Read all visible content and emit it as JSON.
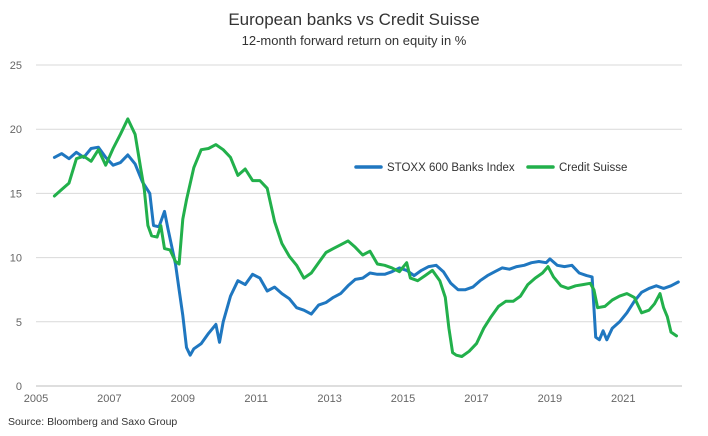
{
  "source": "Source: Bloomberg and Saxo Group",
  "chart_data": {
    "type": "line",
    "title": "European banks vs Credit Suisse",
    "subtitle": "12-month forward return on equity in %",
    "xlabel": "",
    "ylabel": "",
    "xlim": [
      2005,
      2022.6
    ],
    "ylim": [
      0,
      25
    ],
    "x_ticks": [
      "2005",
      "2007",
      "2009",
      "2011",
      "2013",
      "2015",
      "2017",
      "2019",
      "2021"
    ],
    "y_ticks": [
      "0",
      "5",
      "10",
      "15",
      "20",
      "25"
    ],
    "grid": true,
    "legend_position": "right-center",
    "colors": {
      "stoxx": "#1f77c0",
      "cs": "#22b04b"
    },
    "series": [
      {
        "name": "STOXX 600 Banks Index",
        "color": "#1f77c0",
        "points": [
          [
            2005.5,
            17.8
          ],
          [
            2005.7,
            18.1
          ],
          [
            2005.9,
            17.7
          ],
          [
            2006.1,
            18.2
          ],
          [
            2006.3,
            17.8
          ],
          [
            2006.5,
            18.5
          ],
          [
            2006.7,
            18.6
          ],
          [
            2006.9,
            17.8
          ],
          [
            2007.1,
            17.2
          ],
          [
            2007.3,
            17.4
          ],
          [
            2007.5,
            18.0
          ],
          [
            2007.7,
            17.3
          ],
          [
            2007.9,
            15.9
          ],
          [
            2008.1,
            15.0
          ],
          [
            2008.2,
            12.5
          ],
          [
            2008.35,
            12.4
          ],
          [
            2008.5,
            13.6
          ],
          [
            2008.6,
            12.2
          ],
          [
            2008.8,
            9.5
          ],
          [
            2008.9,
            7.5
          ],
          [
            2009.0,
            5.5
          ],
          [
            2009.1,
            3.0
          ],
          [
            2009.2,
            2.4
          ],
          [
            2009.3,
            2.9
          ],
          [
            2009.5,
            3.3
          ],
          [
            2009.7,
            4.1
          ],
          [
            2009.9,
            4.8
          ],
          [
            2010.0,
            3.4
          ],
          [
            2010.1,
            5.0
          ],
          [
            2010.3,
            7.0
          ],
          [
            2010.5,
            8.2
          ],
          [
            2010.7,
            7.9
          ],
          [
            2010.9,
            8.7
          ],
          [
            2011.1,
            8.4
          ],
          [
            2011.3,
            7.4
          ],
          [
            2011.5,
            7.7
          ],
          [
            2011.7,
            7.2
          ],
          [
            2011.9,
            6.8
          ],
          [
            2012.1,
            6.1
          ],
          [
            2012.3,
            5.9
          ],
          [
            2012.5,
            5.6
          ],
          [
            2012.7,
            6.3
          ],
          [
            2012.9,
            6.5
          ],
          [
            2013.1,
            6.9
          ],
          [
            2013.3,
            7.2
          ],
          [
            2013.5,
            7.8
          ],
          [
            2013.7,
            8.3
          ],
          [
            2013.9,
            8.4
          ],
          [
            2014.1,
            8.8
          ],
          [
            2014.3,
            8.7
          ],
          [
            2014.5,
            8.7
          ],
          [
            2014.7,
            8.9
          ],
          [
            2014.9,
            9.2
          ],
          [
            2015.1,
            9.0
          ],
          [
            2015.3,
            8.6
          ],
          [
            2015.5,
            9.0
          ],
          [
            2015.7,
            9.3
          ],
          [
            2015.9,
            9.4
          ],
          [
            2016.1,
            8.9
          ],
          [
            2016.3,
            8.0
          ],
          [
            2016.5,
            7.5
          ],
          [
            2016.7,
            7.5
          ],
          [
            2016.9,
            7.7
          ],
          [
            2017.1,
            8.2
          ],
          [
            2017.3,
            8.6
          ],
          [
            2017.5,
            8.9
          ],
          [
            2017.7,
            9.2
          ],
          [
            2017.9,
            9.1
          ],
          [
            2018.1,
            9.3
          ],
          [
            2018.3,
            9.4
          ],
          [
            2018.5,
            9.6
          ],
          [
            2018.7,
            9.7
          ],
          [
            2018.9,
            9.6
          ],
          [
            2019.0,
            9.9
          ],
          [
            2019.2,
            9.4
          ],
          [
            2019.4,
            9.3
          ],
          [
            2019.6,
            9.4
          ],
          [
            2019.8,
            8.8
          ],
          [
            2020.0,
            8.6
          ],
          [
            2020.15,
            8.5
          ],
          [
            2020.25,
            3.8
          ],
          [
            2020.35,
            3.6
          ],
          [
            2020.45,
            4.3
          ],
          [
            2020.55,
            3.6
          ],
          [
            2020.7,
            4.5
          ],
          [
            2020.9,
            5.0
          ],
          [
            2021.1,
            5.7
          ],
          [
            2021.3,
            6.6
          ],
          [
            2021.5,
            7.3
          ],
          [
            2021.7,
            7.6
          ],
          [
            2021.9,
            7.8
          ],
          [
            2022.1,
            7.6
          ],
          [
            2022.3,
            7.8
          ],
          [
            2022.5,
            8.1
          ]
        ]
      },
      {
        "name": "Credit Suisse",
        "color": "#22b04b",
        "points": [
          [
            2005.5,
            14.8
          ],
          [
            2005.7,
            15.3
          ],
          [
            2005.9,
            15.8
          ],
          [
            2006.1,
            17.7
          ],
          [
            2006.3,
            17.9
          ],
          [
            2006.5,
            17.5
          ],
          [
            2006.7,
            18.4
          ],
          [
            2006.9,
            17.2
          ],
          [
            2007.1,
            18.5
          ],
          [
            2007.3,
            19.6
          ],
          [
            2007.5,
            20.8
          ],
          [
            2007.7,
            19.6
          ],
          [
            2007.85,
            17.0
          ],
          [
            2007.95,
            15.3
          ],
          [
            2008.05,
            12.5
          ],
          [
            2008.15,
            11.7
          ],
          [
            2008.3,
            11.6
          ],
          [
            2008.4,
            12.5
          ],
          [
            2008.5,
            10.7
          ],
          [
            2008.65,
            10.6
          ],
          [
            2008.8,
            9.7
          ],
          [
            2008.9,
            9.5
          ],
          [
            2009.0,
            13.0
          ],
          [
            2009.1,
            14.5
          ],
          [
            2009.3,
            17.0
          ],
          [
            2009.5,
            18.4
          ],
          [
            2009.7,
            18.5
          ],
          [
            2009.9,
            18.8
          ],
          [
            2010.1,
            18.4
          ],
          [
            2010.3,
            17.8
          ],
          [
            2010.5,
            16.4
          ],
          [
            2010.7,
            16.9
          ],
          [
            2010.9,
            16.0
          ],
          [
            2011.1,
            16.0
          ],
          [
            2011.3,
            15.4
          ],
          [
            2011.5,
            12.8
          ],
          [
            2011.7,
            11.1
          ],
          [
            2011.9,
            10.1
          ],
          [
            2012.1,
            9.4
          ],
          [
            2012.3,
            8.4
          ],
          [
            2012.5,
            8.8
          ],
          [
            2012.7,
            9.6
          ],
          [
            2012.9,
            10.4
          ],
          [
            2013.1,
            10.7
          ],
          [
            2013.3,
            11.0
          ],
          [
            2013.5,
            11.3
          ],
          [
            2013.7,
            10.8
          ],
          [
            2013.9,
            10.2
          ],
          [
            2014.1,
            10.5
          ],
          [
            2014.3,
            9.5
          ],
          [
            2014.5,
            9.4
          ],
          [
            2014.7,
            9.2
          ],
          [
            2014.9,
            8.9
          ],
          [
            2015.1,
            9.6
          ],
          [
            2015.2,
            8.4
          ],
          [
            2015.4,
            8.2
          ],
          [
            2015.6,
            8.6
          ],
          [
            2015.8,
            9.0
          ],
          [
            2016.0,
            8.2
          ],
          [
            2016.15,
            6.9
          ],
          [
            2016.25,
            4.5
          ],
          [
            2016.35,
            2.6
          ],
          [
            2016.45,
            2.4
          ],
          [
            2016.6,
            2.3
          ],
          [
            2016.8,
            2.7
          ],
          [
            2017.0,
            3.3
          ],
          [
            2017.2,
            4.5
          ],
          [
            2017.4,
            5.4
          ],
          [
            2017.6,
            6.2
          ],
          [
            2017.8,
            6.6
          ],
          [
            2018.0,
            6.6
          ],
          [
            2018.2,
            7.0
          ],
          [
            2018.4,
            7.9
          ],
          [
            2018.6,
            8.4
          ],
          [
            2018.8,
            8.8
          ],
          [
            2018.95,
            9.3
          ],
          [
            2019.1,
            8.5
          ],
          [
            2019.3,
            7.8
          ],
          [
            2019.5,
            7.6
          ],
          [
            2019.7,
            7.8
          ],
          [
            2019.9,
            7.9
          ],
          [
            2020.1,
            8.0
          ],
          [
            2020.2,
            7.5
          ],
          [
            2020.3,
            6.1
          ],
          [
            2020.5,
            6.2
          ],
          [
            2020.7,
            6.7
          ],
          [
            2020.9,
            7.0
          ],
          [
            2021.1,
            7.2
          ],
          [
            2021.3,
            6.9
          ],
          [
            2021.5,
            5.7
          ],
          [
            2021.7,
            5.9
          ],
          [
            2021.85,
            6.4
          ],
          [
            2022.0,
            7.2
          ],
          [
            2022.1,
            6.1
          ],
          [
            2022.2,
            5.4
          ],
          [
            2022.3,
            4.2
          ],
          [
            2022.45,
            3.9
          ]
        ]
      }
    ]
  }
}
